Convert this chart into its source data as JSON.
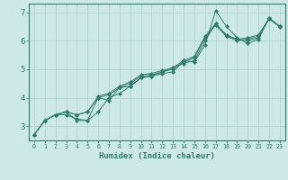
{
  "xlabel": "Humidex (Indice chaleur)",
  "ylabel": "",
  "xlim": [
    -0.5,
    23.5
  ],
  "ylim": [
    2.5,
    7.3
  ],
  "xticks": [
    0,
    1,
    2,
    3,
    4,
    5,
    6,
    7,
    8,
    9,
    10,
    11,
    12,
    13,
    14,
    15,
    16,
    17,
    18,
    19,
    20,
    21,
    22,
    23
  ],
  "yticks": [
    3,
    4,
    5,
    6,
    7
  ],
  "background_color": "#cce9e7",
  "grid_color": "#aacfcc",
  "line_color": "#2e7d6e",
  "series": [
    [
      2.7,
      3.2,
      3.4,
      3.4,
      3.25,
      3.2,
      3.5,
      4.0,
      4.15,
      4.4,
      4.7,
      4.75,
      4.85,
      4.9,
      5.3,
      5.25,
      5.85,
      7.05,
      6.5,
      6.1,
      5.9,
      6.05,
      6.8,
      6.5
    ],
    [
      2.7,
      3.2,
      3.4,
      3.5,
      3.2,
      3.2,
      4.0,
      3.9,
      4.35,
      4.4,
      4.7,
      4.75,
      4.9,
      5.05,
      5.2,
      5.3,
      6.0,
      6.6,
      6.15,
      6.05,
      6.0,
      6.1,
      6.78,
      6.48
    ],
    [
      2.7,
      3.2,
      3.4,
      3.5,
      3.4,
      3.5,
      4.0,
      4.1,
      4.35,
      4.5,
      4.75,
      4.8,
      4.9,
      5.0,
      5.25,
      5.4,
      6.1,
      6.55,
      6.15,
      6.0,
      6.05,
      6.15,
      6.75,
      6.5
    ],
    [
      2.7,
      3.2,
      3.4,
      3.5,
      3.4,
      3.5,
      4.05,
      4.15,
      4.4,
      4.55,
      4.8,
      4.85,
      4.95,
      5.05,
      5.3,
      5.45,
      6.15,
      6.6,
      6.2,
      6.05,
      6.1,
      6.2,
      6.78,
      6.5
    ]
  ]
}
